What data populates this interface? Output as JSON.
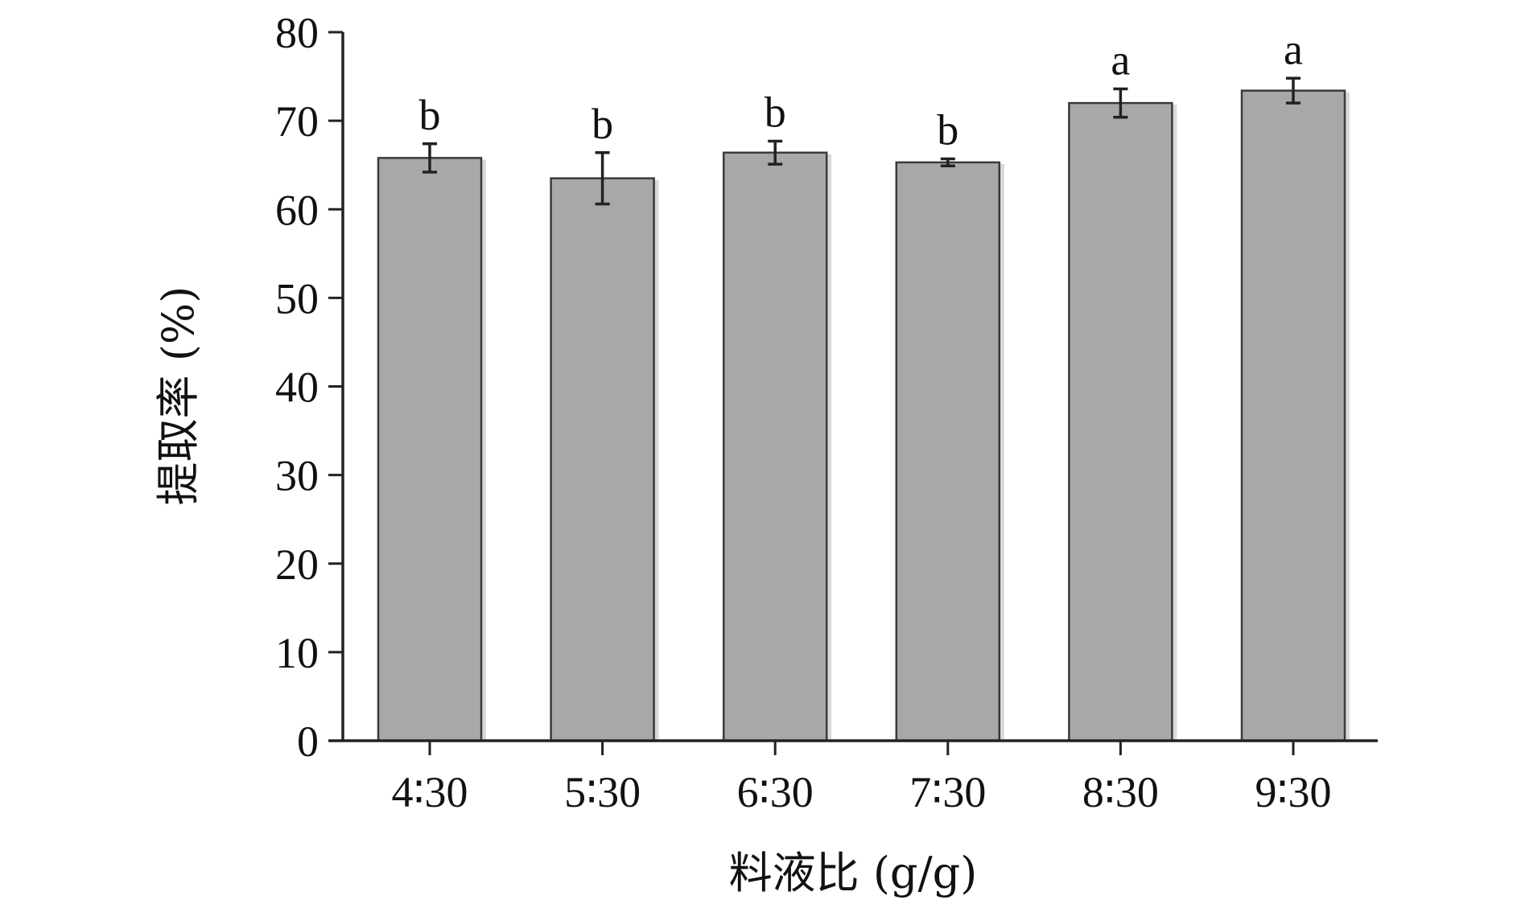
{
  "chart_data": {
    "type": "bar",
    "title": "",
    "xlabel": "料液比 (g/g)",
    "ylabel": "提取率 (%)",
    "categories": [
      "4∶30",
      "5∶30",
      "6∶30",
      "7∶30",
      "8∶30",
      "9∶30"
    ],
    "values": [
      65.8,
      63.5,
      66.4,
      65.3,
      72.0,
      73.4
    ],
    "errors": [
      1.6,
      2.9,
      1.3,
      0.4,
      1.6,
      1.4
    ],
    "significance_labels": [
      "b",
      "b",
      "b",
      "b",
      "a",
      "a"
    ],
    "ylim": [
      0,
      80
    ],
    "yticks": [
      0,
      10,
      20,
      30,
      40,
      50,
      60,
      70,
      80
    ],
    "grid": false,
    "legend": "none",
    "colors": {
      "bar_fill": "#a8a8a8",
      "bar_edge": "#3a3a3a",
      "axis": "#222222"
    }
  }
}
